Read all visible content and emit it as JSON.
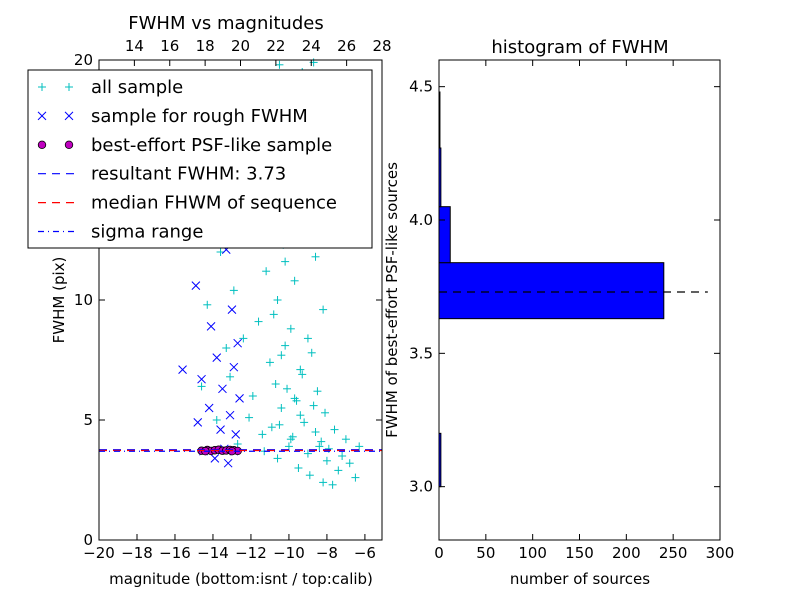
{
  "chart_data": [
    {
      "type": "scatter",
      "title": "FWHM vs magnitudes",
      "xlabel": "magnitude (bottom:isnt / top:calib)",
      "ylabel": "FWHM (pix)",
      "xlim": [
        -20,
        -5.1
      ],
      "ylim": [
        0,
        20
      ],
      "x_ticks": [
        -20,
        -18,
        -16,
        -14,
        -12,
        -10,
        -8,
        -6
      ],
      "x_tick_labels": [
        "−20",
        "−18",
        "−16",
        "−14",
        "−12",
        "−10",
        "−8",
        "−6"
      ],
      "y_ticks": [
        0,
        5,
        10
      ],
      "top_xlim": [
        12,
        28
      ],
      "top_x_ticks": [
        14,
        16,
        18,
        20,
        22,
        24,
        26,
        28
      ],
      "top_x_tick_labels": [
        "14",
        "16",
        "18",
        "20",
        "22",
        "24",
        "26",
        "28"
      ],
      "top_y_tick_label": "20",
      "legend": {
        "placement": "upper-left",
        "entries": [
          {
            "label": "all sample",
            "marker": "+",
            "color": "#00bfbf"
          },
          {
            "label": "sample for rough FWHM",
            "marker": "x",
            "color": "#0000ff"
          },
          {
            "label": "best-effort PSF-like sample",
            "marker": "o",
            "color": "#bf00bf"
          },
          {
            "label": "resultant FWHM: 3.73",
            "line": "dashed",
            "color": "#0000ff"
          },
          {
            "label": "median FHWM of sequence",
            "line": "dashed",
            "color": "#ff0000"
          },
          {
            "label": "sigma range",
            "line": "dashdot",
            "color": "#0000ff"
          }
        ]
      },
      "series": [
        {
          "name": "all sample",
          "color": "#00bfbf",
          "marker": "+",
          "points": [
            [
              -10.5,
              19.8
            ],
            [
              -9.3,
              19.5
            ],
            [
              -8.7,
              19.9
            ],
            [
              -10.8,
              18.7
            ],
            [
              -9.8,
              18.2
            ],
            [
              -11.5,
              17.4
            ],
            [
              -8.9,
              17.1
            ],
            [
              -10.1,
              16.6
            ],
            [
              -12.2,
              15.9
            ],
            [
              -9.5,
              15.4
            ],
            [
              -8.4,
              14.8
            ],
            [
              -10.9,
              14.2
            ],
            [
              -11.8,
              13.6
            ],
            [
              -9.1,
              13.1
            ],
            [
              -12.6,
              12.7
            ],
            [
              -10.3,
              12.3
            ],
            [
              -8.6,
              11.8
            ],
            [
              -11.2,
              11.2
            ],
            [
              -9.7,
              10.8
            ],
            [
              -12.9,
              10.4
            ],
            [
              -10.6,
              10.0
            ],
            [
              -8.2,
              9.6
            ],
            [
              -11.6,
              9.1
            ],
            [
              -9.9,
              8.8
            ],
            [
              -12.4,
              8.4
            ],
            [
              -10.2,
              8.1
            ],
            [
              -8.8,
              7.8
            ],
            [
              -11.0,
              7.4
            ],
            [
              -9.4,
              7.1
            ],
            [
              -13.1,
              6.8
            ],
            [
              -10.7,
              6.5
            ],
            [
              -8.5,
              6.2
            ],
            [
              -11.9,
              6.0
            ],
            [
              -9.6,
              5.8
            ],
            [
              -10.4,
              5.5
            ],
            [
              -8.1,
              5.3
            ],
            [
              -12.1,
              5.1
            ],
            [
              -9.2,
              4.9
            ],
            [
              -10.9,
              4.7
            ],
            [
              -7.6,
              4.6
            ],
            [
              -11.4,
              4.4
            ],
            [
              -9.8,
              4.3
            ],
            [
              -8.3,
              4.1
            ],
            [
              -12.7,
              4.0
            ],
            [
              -10.0,
              3.9
            ],
            [
              -7.9,
              3.8
            ],
            [
              -11.3,
              3.7
            ],
            [
              -9.0,
              3.6
            ],
            [
              -7.2,
              3.5
            ],
            [
              -10.6,
              3.4
            ],
            [
              -8.0,
              3.3
            ],
            [
              -6.8,
              3.2
            ],
            [
              -9.5,
              3.0
            ],
            [
              -7.4,
              2.9
            ],
            [
              -8.9,
              2.7
            ],
            [
              -6.5,
              2.6
            ],
            [
              -8.2,
              2.4
            ],
            [
              -7.7,
              2.3
            ],
            [
              -10.2,
              11.6
            ],
            [
              -9.6,
              12.9
            ],
            [
              -10.8,
              9.4
            ],
            [
              -9.0,
              8.4
            ],
            [
              -10.4,
              7.7
            ],
            [
              -9.3,
              6.9
            ],
            [
              -10.1,
              6.3
            ],
            [
              -9.7,
              5.9
            ],
            [
              -8.7,
              5.6
            ],
            [
              -9.4,
              5.2
            ],
            [
              -10.5,
              4.8
            ],
            [
              -8.6,
              4.5
            ],
            [
              -9.9,
              4.2
            ],
            [
              -8.4,
              3.9
            ],
            [
              -14.0,
              15.2
            ],
            [
              -13.6,
              12.0
            ],
            [
              -14.3,
              9.8
            ],
            [
              -13.3,
              8.0
            ],
            [
              -14.6,
              6.4
            ],
            [
              -13.8,
              5.0
            ],
            [
              -7.0,
              4.2
            ],
            [
              -6.3,
              3.9
            ]
          ]
        },
        {
          "name": "sample for rough FWHM",
          "color": "#0000ff",
          "marker": "x",
          "points": [
            [
              -14.4,
              12.8
            ],
            [
              -13.3,
              12.1
            ],
            [
              -14.9,
              10.6
            ],
            [
              -13.0,
              9.6
            ],
            [
              -14.1,
              8.9
            ],
            [
              -12.7,
              8.2
            ],
            [
              -15.6,
              7.1
            ],
            [
              -13.8,
              7.6
            ],
            [
              -12.9,
              7.2
            ],
            [
              -14.6,
              6.7
            ],
            [
              -13.5,
              6.3
            ],
            [
              -12.6,
              5.9
            ],
            [
              -14.2,
              5.5
            ],
            [
              -13.1,
              5.2
            ],
            [
              -14.8,
              4.9
            ],
            [
              -13.6,
              4.6
            ],
            [
              -12.8,
              4.4
            ],
            [
              -13.9,
              3.4
            ],
            [
              -13.2,
              3.2
            ],
            [
              -14.5,
              3.7
            ],
            [
              -13.4,
              3.8
            ],
            [
              -12.9,
              3.7
            ]
          ]
        },
        {
          "name": "best-effort PSF-like sample",
          "color": "#bf00bf",
          "marker": "o",
          "points": [
            [
              -14.6,
              3.72
            ],
            [
              -14.3,
              3.75
            ],
            [
              -14.1,
              3.71
            ],
            [
              -13.9,
              3.74
            ],
            [
              -13.7,
              3.76
            ],
            [
              -13.5,
              3.72
            ],
            [
              -13.3,
              3.73
            ],
            [
              -13.1,
              3.75
            ],
            [
              -12.9,
              3.74
            ],
            [
              -12.7,
              3.71
            ],
            [
              -14.4,
              3.7
            ],
            [
              -13.0,
              3.7
            ]
          ]
        }
      ],
      "lines": [
        {
          "label": "resultant FWHM: 3.73",
          "y": 3.73,
          "color": "#0000ff",
          "style": "dashed"
        },
        {
          "label": "median FHWM of sequence",
          "y": 3.73,
          "color": "#ff0000",
          "style": "dashed"
        },
        {
          "label": "sigma range",
          "y": 3.73,
          "color": "#0000ff",
          "style": "dashdot"
        }
      ]
    },
    {
      "type": "bar",
      "orientation": "horizontal",
      "title": "histogram of FWHM",
      "xlabel": "number of sources",
      "ylabel": "FWHM of best-effort PSF-like sources",
      "xlim": [
        0,
        300
      ],
      "ylim": [
        2.8,
        4.6
      ],
      "x_ticks": [
        0,
        50,
        100,
        150,
        200,
        250,
        300
      ],
      "y_ticks": [
        3.0,
        3.5,
        4.0,
        4.5
      ],
      "y_tick_labels": [
        "3.0",
        "3.5",
        "4.0",
        "4.5"
      ],
      "color": "#0000ff",
      "bins": [
        {
          "from": 3.0,
          "to": 3.2,
          "count": 2
        },
        {
          "from": 3.63,
          "to": 3.84,
          "count": 240
        },
        {
          "from": 3.84,
          "to": 4.05,
          "count": 12
        },
        {
          "from": 4.05,
          "to": 4.27,
          "count": 2
        },
        {
          "from": 4.27,
          "to": 4.48,
          "count": 1
        }
      ],
      "reference_line": {
        "y": 3.73,
        "x_to": 287,
        "style": "dashed",
        "color": "#000000"
      }
    }
  ]
}
